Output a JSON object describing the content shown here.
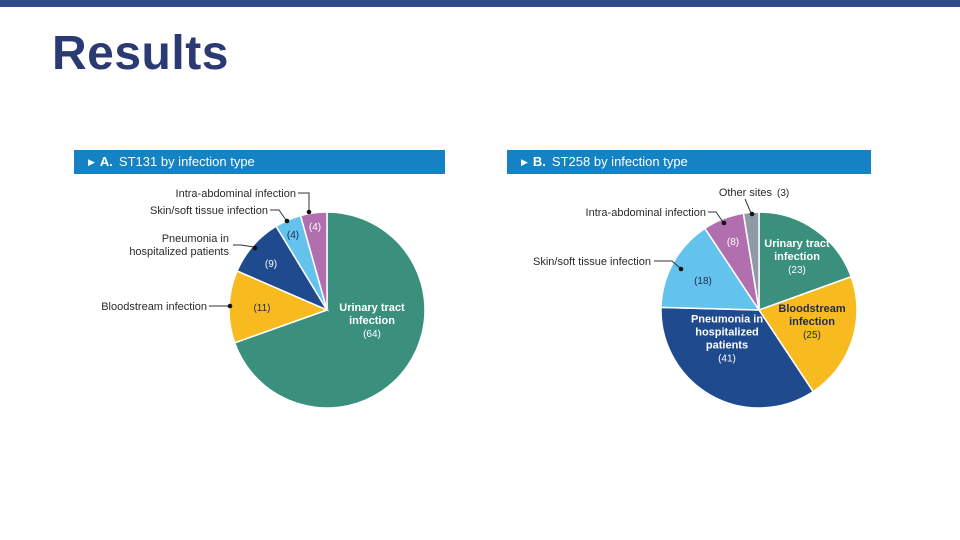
{
  "slide": {
    "title": "Results",
    "accent_color": "#2e4a8a",
    "header_color": "#1583c3"
  },
  "chart_data": [
    {
      "id": "A",
      "type": "pie",
      "panel_letter": "A.",
      "title": "ST131 by infection type",
      "slices": [
        {
          "label": "Urinary tract infection",
          "value": 64,
          "color": "#3a8f7d"
        },
        {
          "label": "Bloodstream infection",
          "value": 11,
          "color": "#f7bb1f"
        },
        {
          "label": "Pneumonia in hospitalized patients",
          "value": 9,
          "color": "#1f4a8d"
        },
        {
          "label": "Skin/soft tissue infection",
          "value": 4,
          "color": "#64c3ec"
        },
        {
          "label": "Intra-abdominal infection",
          "value": 4,
          "color": "#b16fb0"
        }
      ],
      "inside_labels": [
        {
          "lines": [
            "Urinary tract",
            "infection"
          ],
          "value_text": "(64)"
        },
        {
          "lines": [],
          "value_text": "(11)"
        },
        {
          "lines": [],
          "value_text": "(9)"
        },
        {
          "lines": [],
          "value_text": "(4)"
        },
        {
          "lines": [],
          "value_text": "(4)"
        }
      ],
      "callouts": [
        {
          "lines": [
            "Intra-abdominal infection"
          ]
        },
        {
          "lines": [
            "Skin/soft tissue infection"
          ]
        },
        {
          "lines": [
            "Pneumonia in",
            "hospitalized patients"
          ]
        },
        {
          "lines": [
            "Bloodstream infection"
          ]
        }
      ]
    },
    {
      "id": "B",
      "type": "pie",
      "panel_letter": "B.",
      "title": "ST258 by infection type",
      "slices": [
        {
          "label": "Urinary tract infection",
          "value": 23,
          "color": "#3a8f7d"
        },
        {
          "label": "Bloodstream infection",
          "value": 25,
          "color": "#f7bb1f"
        },
        {
          "label": "Pneumonia in hospitalized patients",
          "value": 41,
          "color": "#1f4a8d"
        },
        {
          "label": "Skin/soft tissue infection",
          "value": 18,
          "color": "#64c3ec"
        },
        {
          "label": "Intra-abdominal infection",
          "value": 8,
          "color": "#b16fb0"
        },
        {
          "label": "Other sites",
          "value": 3,
          "color": "#8f9aa7"
        }
      ],
      "inside_labels": [
        {
          "lines": [
            "Urinary tract",
            "infection"
          ],
          "value_text": "(23)"
        },
        {
          "lines": [
            "Bloodstream",
            "infection"
          ],
          "value_text": "(25)"
        },
        {
          "lines": [
            "Pneumonia in",
            "hospitalized",
            "patients"
          ],
          "value_text": "(41)"
        },
        {
          "lines": [],
          "value_text": "(18)"
        },
        {
          "lines": [],
          "value_text": "(8)"
        },
        {
          "lines": [],
          "value_text": ""
        }
      ],
      "callouts": [
        {
          "lines": [
            "Other sites"
          ],
          "value_text": "(3)"
        },
        {
          "lines": [
            "Intra-abdominal infection"
          ]
        },
        {
          "lines": [
            "Skin/soft tissue infection"
          ]
        }
      ]
    }
  ]
}
